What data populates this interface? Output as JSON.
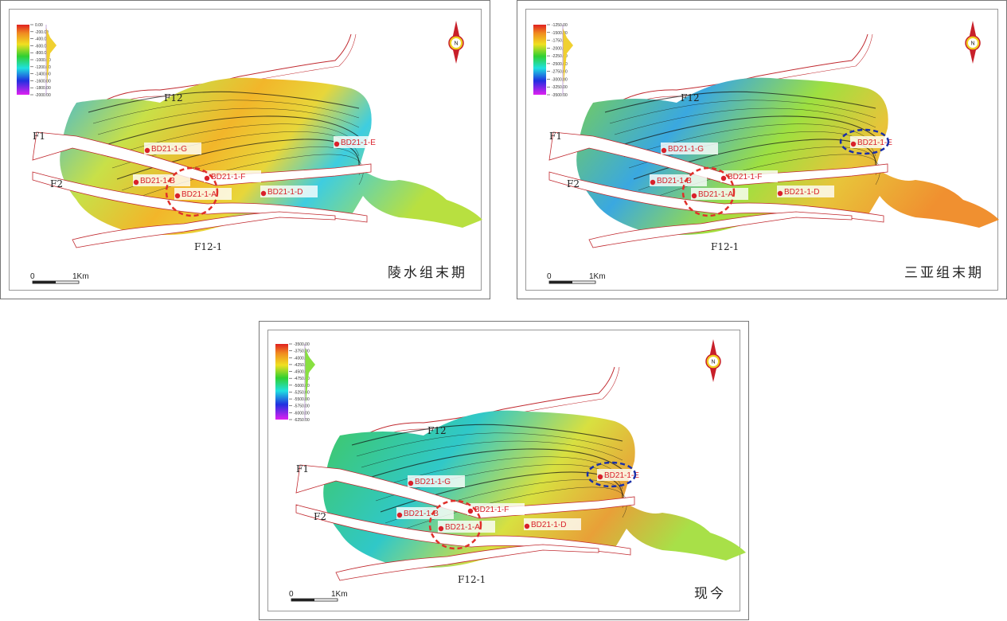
{
  "colors": {
    "well": "#d9202a",
    "fault": "#c0282e",
    "highlight_red": "#e0302a",
    "highlight_blue": "#1a2fa8",
    "frame": "#777777"
  },
  "north_arrow": {
    "label": "N",
    "icon": "north-arrow-icon"
  },
  "scale_bar": {
    "start": "0",
    "end": "1Km"
  },
  "faults": [
    "F12",
    "F1",
    "F2",
    "F12-1"
  ],
  "wells": [
    "BD21-1-G",
    "BD21-1-B",
    "BD21-1-F",
    "BD21-1-A",
    "BD21-1-D",
    "BD21-1-E"
  ],
  "panels": [
    {
      "title": "陵水组末期",
      "legend": [
        "0.00",
        "-200.00",
        "-400.00",
        "-600.00",
        "-800.00",
        "-1000.00",
        "-1200.00",
        "-1400.00",
        "-1600.00",
        "-1800.00",
        "-2000.00"
      ],
      "highlights": [
        "BD21-1-A"
      ]
    },
    {
      "title": "三亚组末期",
      "legend": [
        "-1250.00",
        "-1500.00",
        "-1750.00",
        "-2000.00",
        "-2250.00",
        "-2500.00",
        "-2750.00",
        "-3000.00",
        "-3250.00",
        "-3500.00"
      ],
      "highlights": [
        "BD21-1-A",
        "BD21-1-E"
      ]
    },
    {
      "title": "现今",
      "legend": [
        "-3500.00",
        "-3750.00",
        "-4000.00",
        "-4250.00",
        "-4500.00",
        "-4750.00",
        "-5000.00",
        "-5250.00",
        "-5500.00",
        "-5750.00",
        "-6000.00",
        "-6250.00"
      ],
      "highlights": [
        "BD21-1-A",
        "BD21-1-E"
      ]
    }
  ]
}
